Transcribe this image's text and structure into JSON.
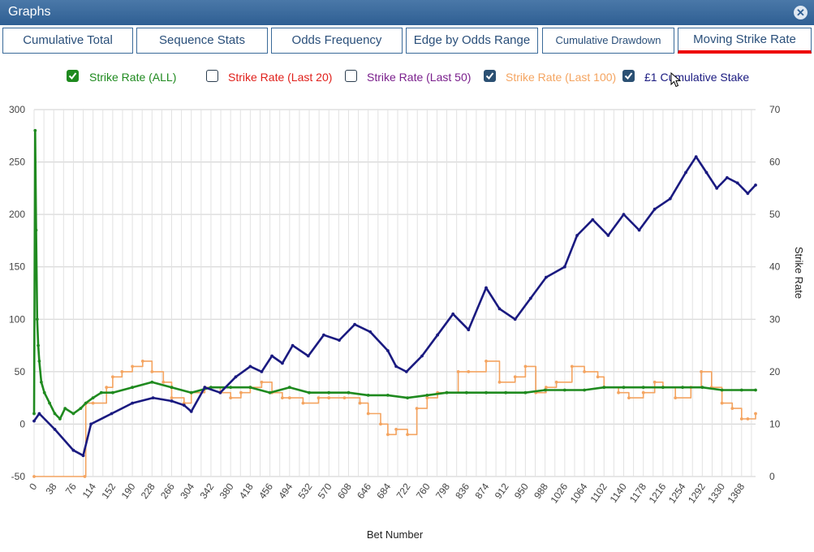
{
  "window": {
    "title": "Graphs",
    "close_icon": "close-icon"
  },
  "tabs": [
    {
      "label": "Cumulative Total",
      "active": false
    },
    {
      "label": "Sequence Stats",
      "active": false
    },
    {
      "label": "Odds Frequency",
      "active": false
    },
    {
      "label": "Edge by Odds Range",
      "active": false
    },
    {
      "label": "Cumulative Drawdown",
      "active": false
    },
    {
      "label": "Moving Strike Rate",
      "active": true
    }
  ],
  "legend": [
    {
      "label": "Strike Rate (ALL)",
      "checked": true,
      "color": "#1f8a1f"
    },
    {
      "label": "Strike Rate (Last 20)",
      "checked": false,
      "color": "#e0201b"
    },
    {
      "label": "Strike Rate (Last 50)",
      "checked": false,
      "color": "#7a1f8c"
    },
    {
      "label": "Strike Rate (Last 100)",
      "checked": true,
      "color": "#f4a460"
    },
    {
      "label": "£1 Cumulative Stake",
      "checked": true,
      "color": "#1a1a80"
    }
  ],
  "chart_data": {
    "type": "line",
    "xlabel": "Bet Number",
    "ylabel_left": "",
    "ylabel_right": "Strike Rate",
    "ylim_left": [
      -50,
      300
    ],
    "ylim_right": [
      0,
      70
    ],
    "y_ticks_left": [
      "-50",
      "0",
      "50",
      "100",
      "150",
      "200",
      "250",
      "300"
    ],
    "y_ticks_right": [
      "0",
      "10",
      "20",
      "30",
      "40",
      "50",
      "60",
      "70"
    ],
    "x_ticks": [
      "0",
      "38",
      "76",
      "114",
      "152",
      "190",
      "228",
      "266",
      "304",
      "342",
      "380",
      "418",
      "456",
      "494",
      "532",
      "570",
      "608",
      "646",
      "684",
      "722",
      "760",
      "798",
      "836",
      "874",
      "912",
      "950",
      "988",
      "1026",
      "1064",
      "1102",
      "1140",
      "1178",
      "1216",
      "1254",
      "1292",
      "1330",
      "1368"
    ],
    "xlim": [
      0,
      1395
    ],
    "grid": true,
    "series": [
      {
        "name": "£1 Cumulative Stake",
        "axis": "left",
        "color": "#1a1a80",
        "x": [
          0,
          10,
          40,
          76,
          95,
          110,
          150,
          190,
          230,
          266,
          290,
          304,
          330,
          360,
          390,
          418,
          440,
          460,
          480,
          500,
          530,
          560,
          590,
          620,
          650,
          684,
          700,
          720,
          750,
          780,
          810,
          840,
          874,
          900,
          930,
          960,
          990,
          1026,
          1050,
          1080,
          1110,
          1140,
          1170,
          1200,
          1230,
          1260,
          1280,
          1300,
          1320,
          1340,
          1360,
          1380,
          1395
        ],
        "y": [
          3,
          10,
          -5,
          -25,
          -30,
          0,
          10,
          20,
          25,
          22,
          18,
          12,
          35,
          30,
          45,
          55,
          50,
          65,
          58,
          75,
          65,
          85,
          80,
          95,
          88,
          70,
          55,
          50,
          65,
          85,
          105,
          90,
          130,
          110,
          100,
          120,
          140,
          150,
          180,
          195,
          180,
          200,
          185,
          205,
          215,
          240,
          255,
          240,
          225,
          235,
          230,
          220,
          228
        ]
      },
      {
        "name": "Strike Rate (ALL)",
        "axis": "right",
        "color": "#1f8a1f",
        "x": [
          0,
          2,
          4,
          6,
          8,
          10,
          14,
          20,
          30,
          40,
          50,
          60,
          76,
          90,
          100,
          114,
          130,
          152,
          190,
          228,
          266,
          304,
          342,
          380,
          418,
          456,
          494,
          532,
          570,
          608,
          646,
          684,
          722,
          760,
          798,
          836,
          874,
          912,
          950,
          988,
          1026,
          1064,
          1102,
          1140,
          1178,
          1216,
          1254,
          1292,
          1330,
          1368,
          1395
        ],
        "y": [
          12,
          66,
          47,
          30,
          25,
          22,
          18,
          16,
          14,
          12,
          11,
          13,
          12,
          13,
          14,
          15,
          16,
          16,
          17,
          18,
          17,
          16,
          17,
          17,
          17,
          16,
          17,
          16,
          16,
          16,
          15.5,
          15.5,
          15,
          15.5,
          16,
          16,
          16,
          16,
          16,
          16.5,
          16.5,
          16.5,
          17,
          17,
          17,
          17,
          17,
          17,
          16.5,
          16.5,
          16.5
        ]
      },
      {
        "name": "Strike Rate (Last 100)",
        "axis": "right",
        "color": "#f4a460",
        "x": [
          0,
          98,
          100,
          114,
          140,
          152,
          170,
          190,
          210,
          228,
          250,
          266,
          290,
          304,
          330,
          360,
          380,
          400,
          418,
          440,
          460,
          480,
          494,
          520,
          550,
          570,
          600,
          630,
          646,
          670,
          684,
          700,
          722,
          740,
          760,
          780,
          798,
          820,
          840,
          874,
          900,
          930,
          950,
          970,
          990,
          1010,
          1040,
          1064,
          1090,
          1102,
          1130,
          1150,
          1178,
          1200,
          1216,
          1240,
          1270,
          1290,
          1310,
          1330,
          1350,
          1368,
          1380,
          1395
        ],
        "y": [
          0,
          0,
          14,
          14,
          17,
          19,
          20,
          21,
          22,
          20,
          18,
          15,
          14,
          16,
          17,
          16,
          15,
          16,
          17,
          18,
          16,
          15,
          15,
          14,
          15,
          15,
          15,
          14,
          12,
          10,
          8,
          9,
          8,
          13,
          15,
          16,
          16,
          20,
          20,
          22,
          18,
          19,
          21,
          16,
          17,
          18,
          21,
          20,
          19,
          17,
          16,
          15,
          16,
          18,
          17,
          15,
          17,
          20,
          17,
          14,
          13,
          11,
          11,
          12
        ]
      }
    ]
  }
}
